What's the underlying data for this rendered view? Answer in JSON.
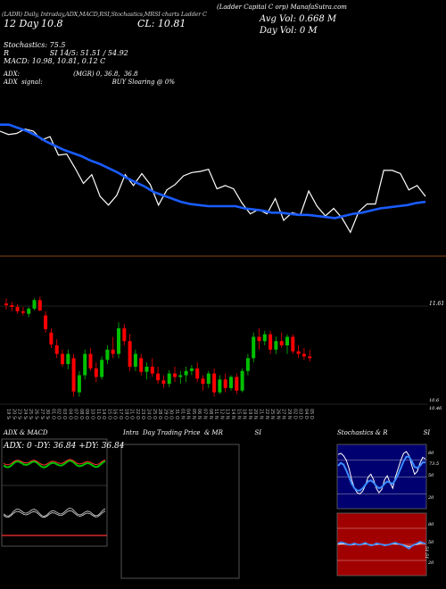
{
  "header": {
    "top_line": "(Ladder Capital C orp) ManafaSutra.com",
    "tabs": "(LADR) Daily, Intraday,ADX,MACD,RSI,Stochastics,MRSI charts Ladder Capital Corp",
    "labels": {
      "chart_kind": "ADX,MACD,R",
      "day": "12 Day",
      "close_short": "10.8",
      "stoch_tab": "6",
      "stoch_name": "SI,Stochastics,MR",
      "ticker_tag": "SI Charts LADR",
      "cl_label": "CL: 10.81",
      "avg_vol": "Avg Vol: 0.668  M",
      "day_vol": "Day Vol: 0   M"
    },
    "indicators": [
      "Stochastics: 75.5",
      "R                  SI 14/5: 51.51 / 54.92",
      "MACD: 10.98, 10.81, 0.12  C"
    ],
    "adx_line": "ADX:                           (MGR) 0, 36.8,  36.8",
    "adx_signal": "ADX  signal:                                   BUY Sloaring @ 0%"
  },
  "price_panel": {
    "right_labels": [
      "11.61",
      "10.6",
      "10.46"
    ]
  },
  "sub_panels": {
    "adx_title": "ADX  & MACD",
    "adx_values": "ADX: 0  -DY: 36.84  +DY: 36.84",
    "intraday_title": "Intra  Day Trading Price  & MR                SI",
    "stoch_title": "Stochastics & R                  SI",
    "stoch_ticks": [
      "80",
      "73.5",
      "50",
      "20"
    ],
    "rsi_ticks": [
      "80",
      "50",
      "20"
    ],
    "rsi_value": "51.51"
  },
  "colors": {
    "up": "#00c000",
    "down": "#ff0000",
    "ma": "#1a5cff",
    "close": "#ffffff",
    "orange": "#8b4513"
  },
  "chart_data": [
    {
      "type": "line",
      "series": [
        {
          "values": [
            11.47,
            11.47,
            11.44,
            11.41,
            11.37,
            11.32,
            11.28,
            11.24,
            11.21,
            11.18,
            11.14,
            11.11,
            11.07,
            11.03,
            10.98,
            10.94,
            10.9,
            10.85,
            10.82,
            10.79,
            10.76,
            10.74,
            10.73,
            10.72,
            10.72,
            10.72,
            10.72,
            10.7,
            10.69,
            10.68,
            10.66,
            10.66,
            10.65,
            10.64,
            10.64,
            10.63,
            10.62,
            10.61,
            10.63,
            10.65,
            10.66,
            10.68,
            10.7,
            10.71,
            10.72,
            10.73,
            10.75,
            10.76
          ]
        },
        {
          "values": [
            11.41,
            11.38,
            11.39,
            11.43,
            11.41,
            11.33,
            11.36,
            11.19,
            11.2,
            11.07,
            10.93,
            11.01,
            10.81,
            10.73,
            10.82,
            11.01,
            10.91,
            11.02,
            10.92,
            10.73,
            10.87,
            10.92,
            11.0,
            11.03,
            11.04,
            11.06,
            10.88,
            10.91,
            10.88,
            10.75,
            10.65,
            10.69,
            10.65,
            10.79,
            10.59,
            10.66,
            10.64,
            10.86,
            10.72,
            10.63,
            10.7,
            10.61,
            10.48,
            10.67,
            10.74,
            10.74,
            11.05,
            11.05,
            11.02,
            10.87,
            10.91,
            10.81
          ]
        }
      ]
    },
    {
      "type": "bar",
      "categories": [
        "19 Sep",
        "20 Sep",
        "23 Sep",
        "24 Sep",
        "25 Sep",
        "26 Sep",
        "27 Sep",
        "30 Sep",
        "01 Oct",
        "02 Oct",
        "03 Oct",
        "04 Oct",
        "07 Oct",
        "08 Oct",
        "09 Oct",
        "10 Oct",
        "11 Oct",
        "14 Oct",
        "15 Oct",
        "16 Oct",
        "17 Oct",
        "18 Oct",
        "21 Oct",
        "22 Oct",
        "23 Oct",
        "24 Oct",
        "25 Oct",
        "28 Oct",
        "29 Oct",
        "30 Oct",
        "31 Oct",
        "01 Nov",
        "04 Nov",
        "05 Nov",
        "06 Nov",
        "07 Nov",
        "08 Nov",
        "11 Nov",
        "12 Nov",
        "13 Nov",
        "14 Nov",
        "15 Nov",
        "18 Nov",
        "19 Nov",
        "20 Nov",
        "21 Nov",
        "22 Nov",
        "25 Nov",
        "26 Nov",
        "27 Nov",
        "29 Nov",
        "02 Dec",
        "03 Dec",
        "04 Dec",
        "05 Dec"
      ],
      "ohlc": [
        [
          11.64,
          11.7,
          11.57,
          11.62
        ],
        [
          11.62,
          11.66,
          11.55,
          11.6
        ],
        [
          11.6,
          11.63,
          11.52,
          11.55
        ],
        [
          11.55,
          11.6,
          11.5,
          11.53
        ],
        [
          11.52,
          11.6,
          11.48,
          11.58
        ],
        [
          11.58,
          11.7,
          11.56,
          11.68
        ],
        [
          11.68,
          11.72,
          11.55,
          11.56
        ],
        [
          11.5,
          11.55,
          11.3,
          11.34
        ],
        [
          11.3,
          11.35,
          11.12,
          11.16
        ],
        [
          11.15,
          11.22,
          11.0,
          11.05
        ],
        [
          11.05,
          11.1,
          10.9,
          10.93
        ],
        [
          10.93,
          11.1,
          10.87,
          11.05
        ],
        [
          11.0,
          11.05,
          10.55,
          10.61
        ],
        [
          10.6,
          10.85,
          10.55,
          10.8
        ],
        [
          10.8,
          11.1,
          10.75,
          11.05
        ],
        [
          11.05,
          11.12,
          10.85,
          10.88
        ],
        [
          10.88,
          10.95,
          10.72,
          10.78
        ],
        [
          10.78,
          11.02,
          10.75,
          10.98
        ],
        [
          10.98,
          11.15,
          10.93,
          11.1
        ],
        [
          11.1,
          11.25,
          11.0,
          11.05
        ],
        [
          11.05,
          11.42,
          11.0,
          11.35
        ],
        [
          11.35,
          11.4,
          11.15,
          11.2
        ],
        [
          11.2,
          11.28,
          10.85,
          10.9
        ],
        [
          10.9,
          11.1,
          10.85,
          11.05
        ],
        [
          11.0,
          11.05,
          10.8,
          10.84
        ],
        [
          10.84,
          10.95,
          10.75,
          10.9
        ],
        [
          10.9,
          11.0,
          10.78,
          10.82
        ],
        [
          10.82,
          10.9,
          10.7,
          10.74
        ],
        [
          10.74,
          10.8,
          10.65,
          10.7
        ],
        [
          10.7,
          10.86,
          10.66,
          10.82
        ],
        [
          10.82,
          10.9,
          10.72,
          10.78
        ],
        [
          10.78,
          10.85,
          10.7,
          10.8
        ],
        [
          10.8,
          10.9,
          10.72,
          10.85
        ],
        [
          10.85,
          10.92,
          10.8,
          10.88
        ],
        [
          10.88,
          10.95,
          10.72,
          10.76
        ],
        [
          10.76,
          10.8,
          10.62,
          10.7
        ],
        [
          10.7,
          10.85,
          10.65,
          10.82
        ],
        [
          10.82,
          10.88,
          10.55,
          10.6
        ],
        [
          10.6,
          10.8,
          10.58,
          10.75
        ],
        [
          10.75,
          10.82,
          10.6,
          10.65
        ],
        [
          10.65,
          10.8,
          10.62,
          10.78
        ],
        [
          10.78,
          10.82,
          10.58,
          10.62
        ],
        [
          10.62,
          10.88,
          10.6,
          10.85
        ],
        [
          10.85,
          11.05,
          10.8,
          11.0
        ],
        [
          11.0,
          11.3,
          10.95,
          11.25
        ],
        [
          11.25,
          11.35,
          11.1,
          11.2
        ],
        [
          11.2,
          11.32,
          11.15,
          11.28
        ],
        [
          11.28,
          11.32,
          11.05,
          11.1
        ],
        [
          11.1,
          11.25,
          11.05,
          11.2
        ],
        [
          11.2,
          11.3,
          11.12,
          11.15
        ],
        [
          11.15,
          11.28,
          11.05,
          11.25
        ],
        [
          11.25,
          11.28,
          11.05,
          11.08
        ],
        [
          11.08,
          11.15,
          11.0,
          11.05
        ],
        [
          11.05,
          11.12,
          10.98,
          11.02
        ],
        [
          11.02,
          11.1,
          10.96,
          11.0
        ]
      ]
    },
    {
      "type": "line",
      "ylim": [
        0,
        100
      ],
      "series": [
        {
          "values": [
            90,
            92,
            88,
            80,
            65,
            45,
            30,
            22,
            20,
            25,
            35,
            50,
            55,
            45,
            30,
            22,
            28,
            45,
            52,
            40,
            30,
            50,
            65,
            80,
            92,
            95,
            88,
            70,
            55,
            60,
            75,
            85,
            82
          ]
        },
        {
          "values": [
            70,
            75,
            72,
            62,
            50,
            38,
            30,
            26,
            26,
            30,
            36,
            42,
            44,
            40,
            34,
            30,
            32,
            38,
            42,
            40,
            38,
            45,
            55,
            66,
            78,
            86,
            86,
            78,
            68,
            66,
            70,
            76,
            76
          ]
        }
      ]
    },
    {
      "type": "line",
      "ylim": [
        0,
        100
      ],
      "series": [
        {
          "values": [
            52,
            54,
            53,
            51,
            49,
            50,
            52,
            50,
            49,
            51,
            53,
            50,
            48,
            49,
            52,
            51,
            50,
            48,
            49,
            50,
            52,
            53,
            51,
            50,
            48,
            45,
            42,
            47,
            50,
            52,
            55,
            53,
            51
          ]
        },
        {
          "values": [
            50,
            51,
            51,
            50,
            49,
            49,
            50,
            50,
            49,
            50,
            51,
            50,
            49,
            49,
            50,
            50,
            50,
            49,
            49,
            50,
            51,
            51,
            50,
            50,
            49,
            47,
            46,
            47,
            49,
            50,
            52,
            52,
            51
          ]
        }
      ]
    }
  ]
}
